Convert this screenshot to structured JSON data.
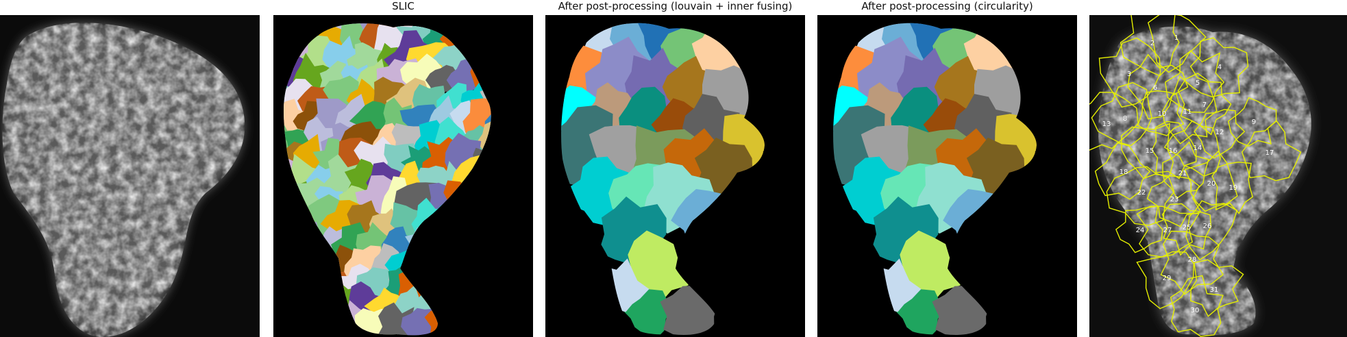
{
  "figure": {
    "panels": [
      {
        "id": "raw",
        "title": ""
      },
      {
        "id": "slic",
        "title": "SLIC"
      },
      {
        "id": "louvain",
        "title": "After post-processing (louvain + inner fusing)"
      },
      {
        "id": "circularity",
        "title": "After post-processing (circularity)"
      },
      {
        "id": "overlay",
        "title": ""
      }
    ],
    "region_labels": [
      "1",
      "2",
      "3",
      "4",
      "5",
      "6",
      "7",
      "8",
      "9",
      "10",
      "11",
      "12",
      "13",
      "14",
      "15",
      "16",
      "17",
      "18",
      "19",
      "20",
      "21",
      "22",
      "23",
      "24",
      "25",
      "26",
      "27",
      "28",
      "29",
      "30",
      "31"
    ],
    "colors": {
      "background": "#000000",
      "outline": "#e6f000",
      "label_text": "#ffffff",
      "slic_palette": [
        "#fb8c3c",
        "#c6dbef",
        "#9ecae1",
        "#3182bd",
        "#74c476",
        "#31a354",
        "#bcbddc",
        "#9e9ac8",
        "#8c510a",
        "#fdd0a2",
        "#bdbdbd",
        "#00ced1",
        "#40e0d0",
        "#66c2a5",
        "#dfc27d",
        "#a6761d",
        "#e6ab02",
        "#7fc97f",
        "#bf5b17",
        "#e7e1ef",
        "#80cdc1",
        "#1b9e77",
        "#d95f02",
        "#7570b3",
        "#636363",
        "#f7fcb9",
        "#cab2d6",
        "#b2df8a",
        "#87ceeb",
        "#a1d99b",
        "#66a61e",
        "#5e3c99",
        "#ffd92f",
        "#8dd3c7"
      ],
      "post_palette": [
        "#c6dbef",
        "#6baed6",
        "#2171b5",
        "#74c476",
        "#fdd0a2",
        "#fd8d3c",
        "#8c8cc8",
        "#756bb1",
        "#a6761d",
        "#9e9e9e",
        "#00ffff",
        "#bc9a7b",
        "#0a8f7f",
        "#994c0a",
        "#606060",
        "#d9c22e",
        "#3b7575",
        "#a0a0a0",
        "#7b9b5c",
        "#c5680a",
        "#7a6020",
        "#00ced1",
        "#66e6b6",
        "#8fe0d0",
        "#0f8f8f",
        "#bfeb62",
        "#1fa55f",
        "#6a6a6a"
      ]
    }
  }
}
